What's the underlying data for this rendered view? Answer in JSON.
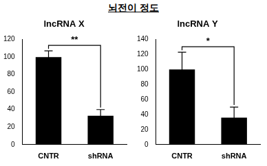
{
  "title": "뇌전이 정도",
  "chart_data": [
    {
      "type": "bar",
      "title": "lncRNA X",
      "categories": [
        "CNTR",
        "shRNA"
      ],
      "values": [
        100,
        33
      ],
      "errors": [
        7,
        7
      ],
      "color": "#000000",
      "ylim": [
        0,
        120
      ],
      "yticks": [
        0,
        20,
        40,
        60,
        80,
        100,
        120
      ],
      "grid": false,
      "annotations": [
        "**"
      ]
    },
    {
      "type": "bar",
      "title": "lncRNA Y",
      "categories": [
        "CNTR",
        "shRNA"
      ],
      "values": [
        100,
        36
      ],
      "errors": [
        23,
        14
      ],
      "color": "#000000",
      "ylim": [
        0,
        140
      ],
      "yticks": [
        0,
        20,
        40,
        60,
        80,
        100,
        120,
        140
      ],
      "grid": false,
      "annotations": [
        "*"
      ]
    }
  ]
}
